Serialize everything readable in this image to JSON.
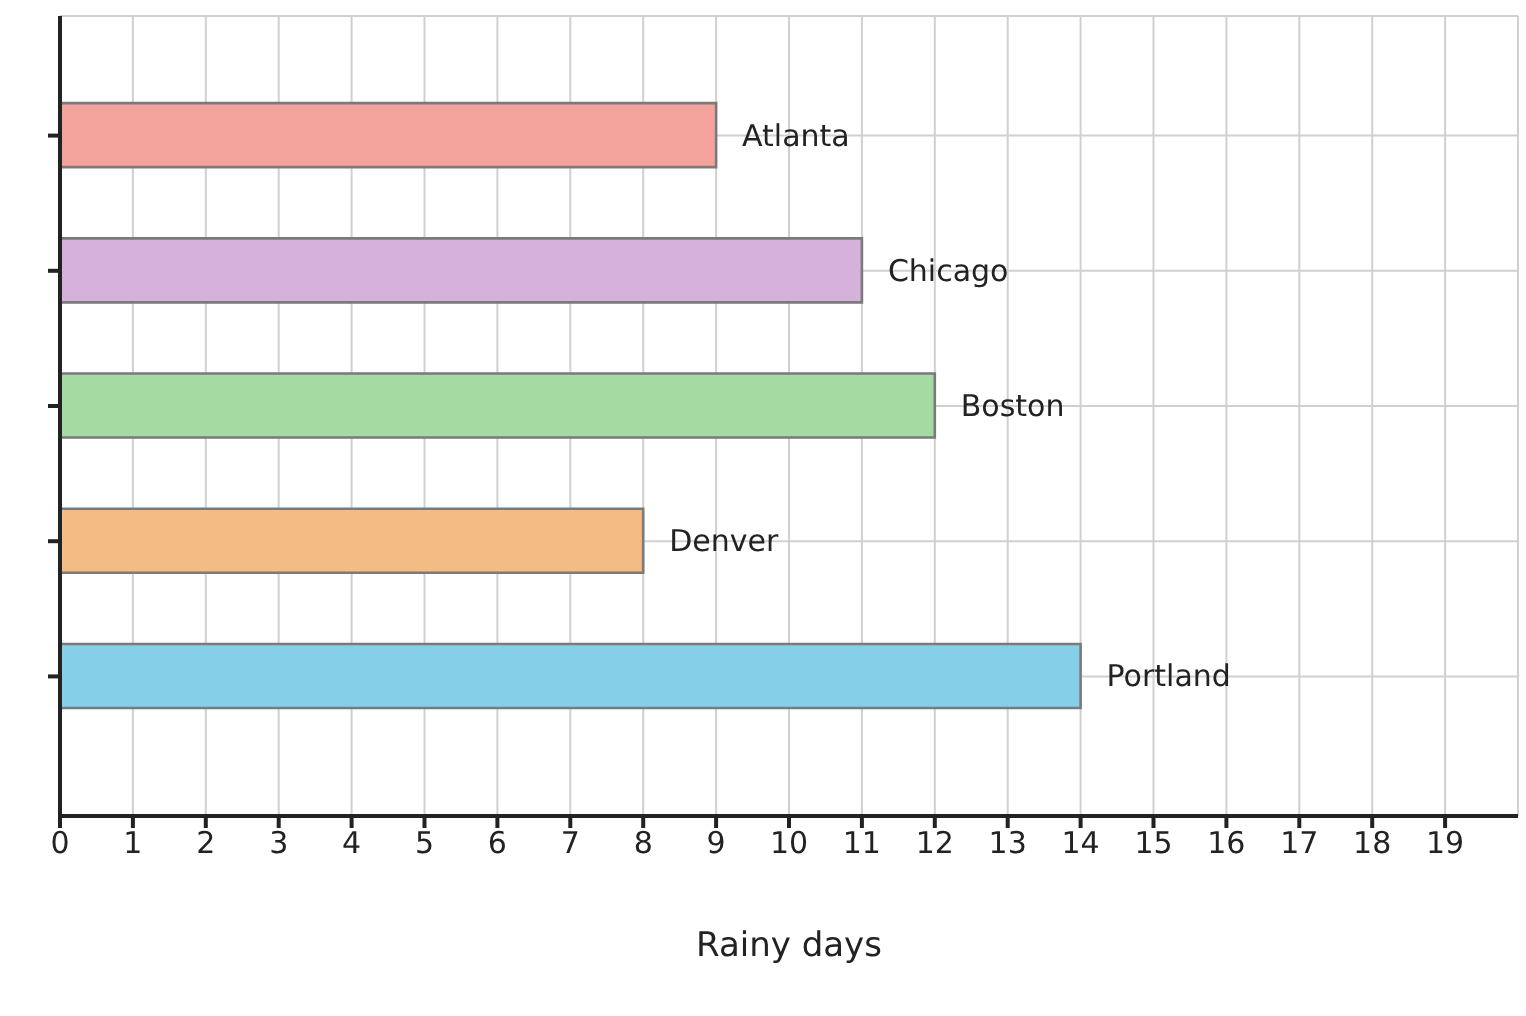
{
  "chart_data": {
    "type": "bar",
    "orientation": "horizontal",
    "xlabel": "Rainy days",
    "categories": [
      "Atlanta",
      "Chicago",
      "Boston",
      "Denver",
      "Portland"
    ],
    "values": [
      9,
      11,
      12,
      8,
      14
    ],
    "colors": [
      "#f4a39c",
      "#d5b1dc",
      "#a3dba3",
      "#f2bc84",
      "#85d0e8"
    ],
    "xlim": [
      0,
      20
    ],
    "xticks": [
      0,
      1,
      2,
      3,
      4,
      5,
      6,
      7,
      8,
      9,
      10,
      11,
      12,
      13,
      14,
      15,
      16,
      17,
      18,
      19
    ],
    "grid": true,
    "tick_labels": "x"
  }
}
